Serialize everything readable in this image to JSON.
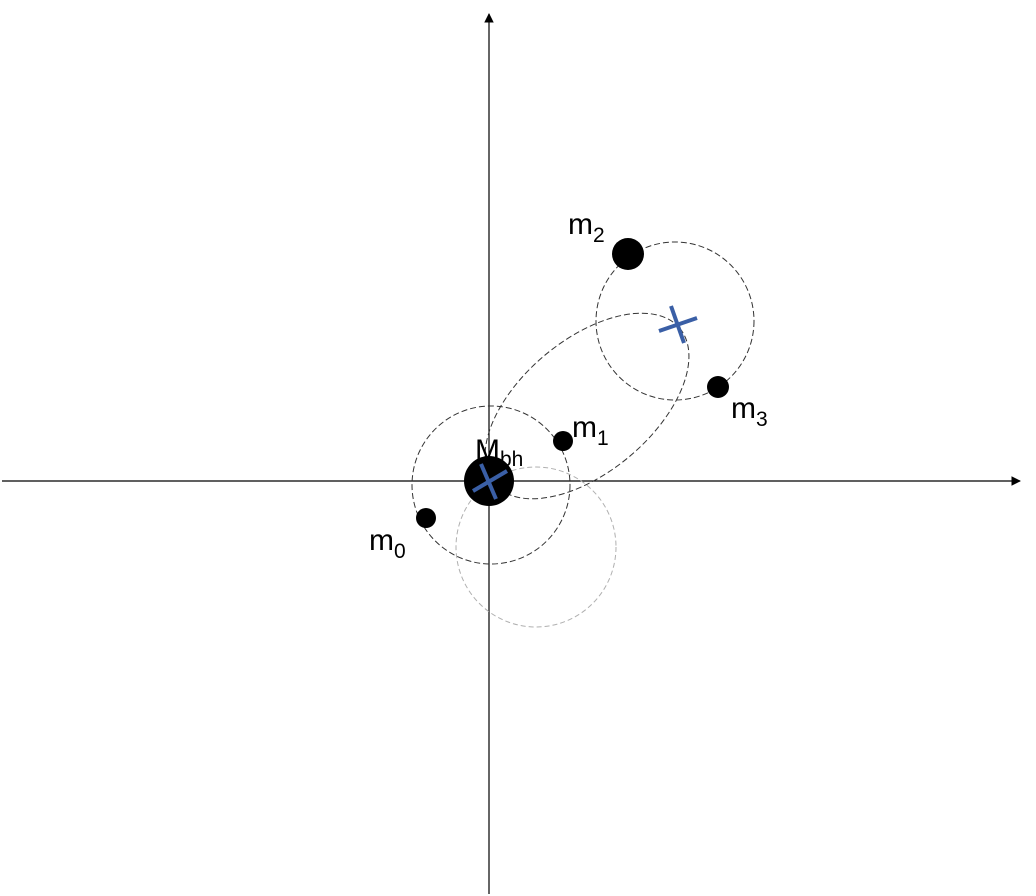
{
  "colors": {
    "axis": "#000000",
    "orbit_dark": "#333333",
    "orbit_light": "#b0b0b0",
    "body": "#000000",
    "center_marker": "#3a5fa6"
  },
  "labels": {
    "m0": {
      "main": "m",
      "sub": "0"
    },
    "m1": {
      "main": "m",
      "sub": "1"
    },
    "m2": {
      "main": "m",
      "sub": "2"
    },
    "m3": {
      "main": "m",
      "sub": "3"
    },
    "mbh": {
      "main": "M",
      "sub": "bh"
    }
  },
  "icons": {
    "center_marker": "blue-cross-icon",
    "axis_arrow": "arrowhead-icon"
  }
}
